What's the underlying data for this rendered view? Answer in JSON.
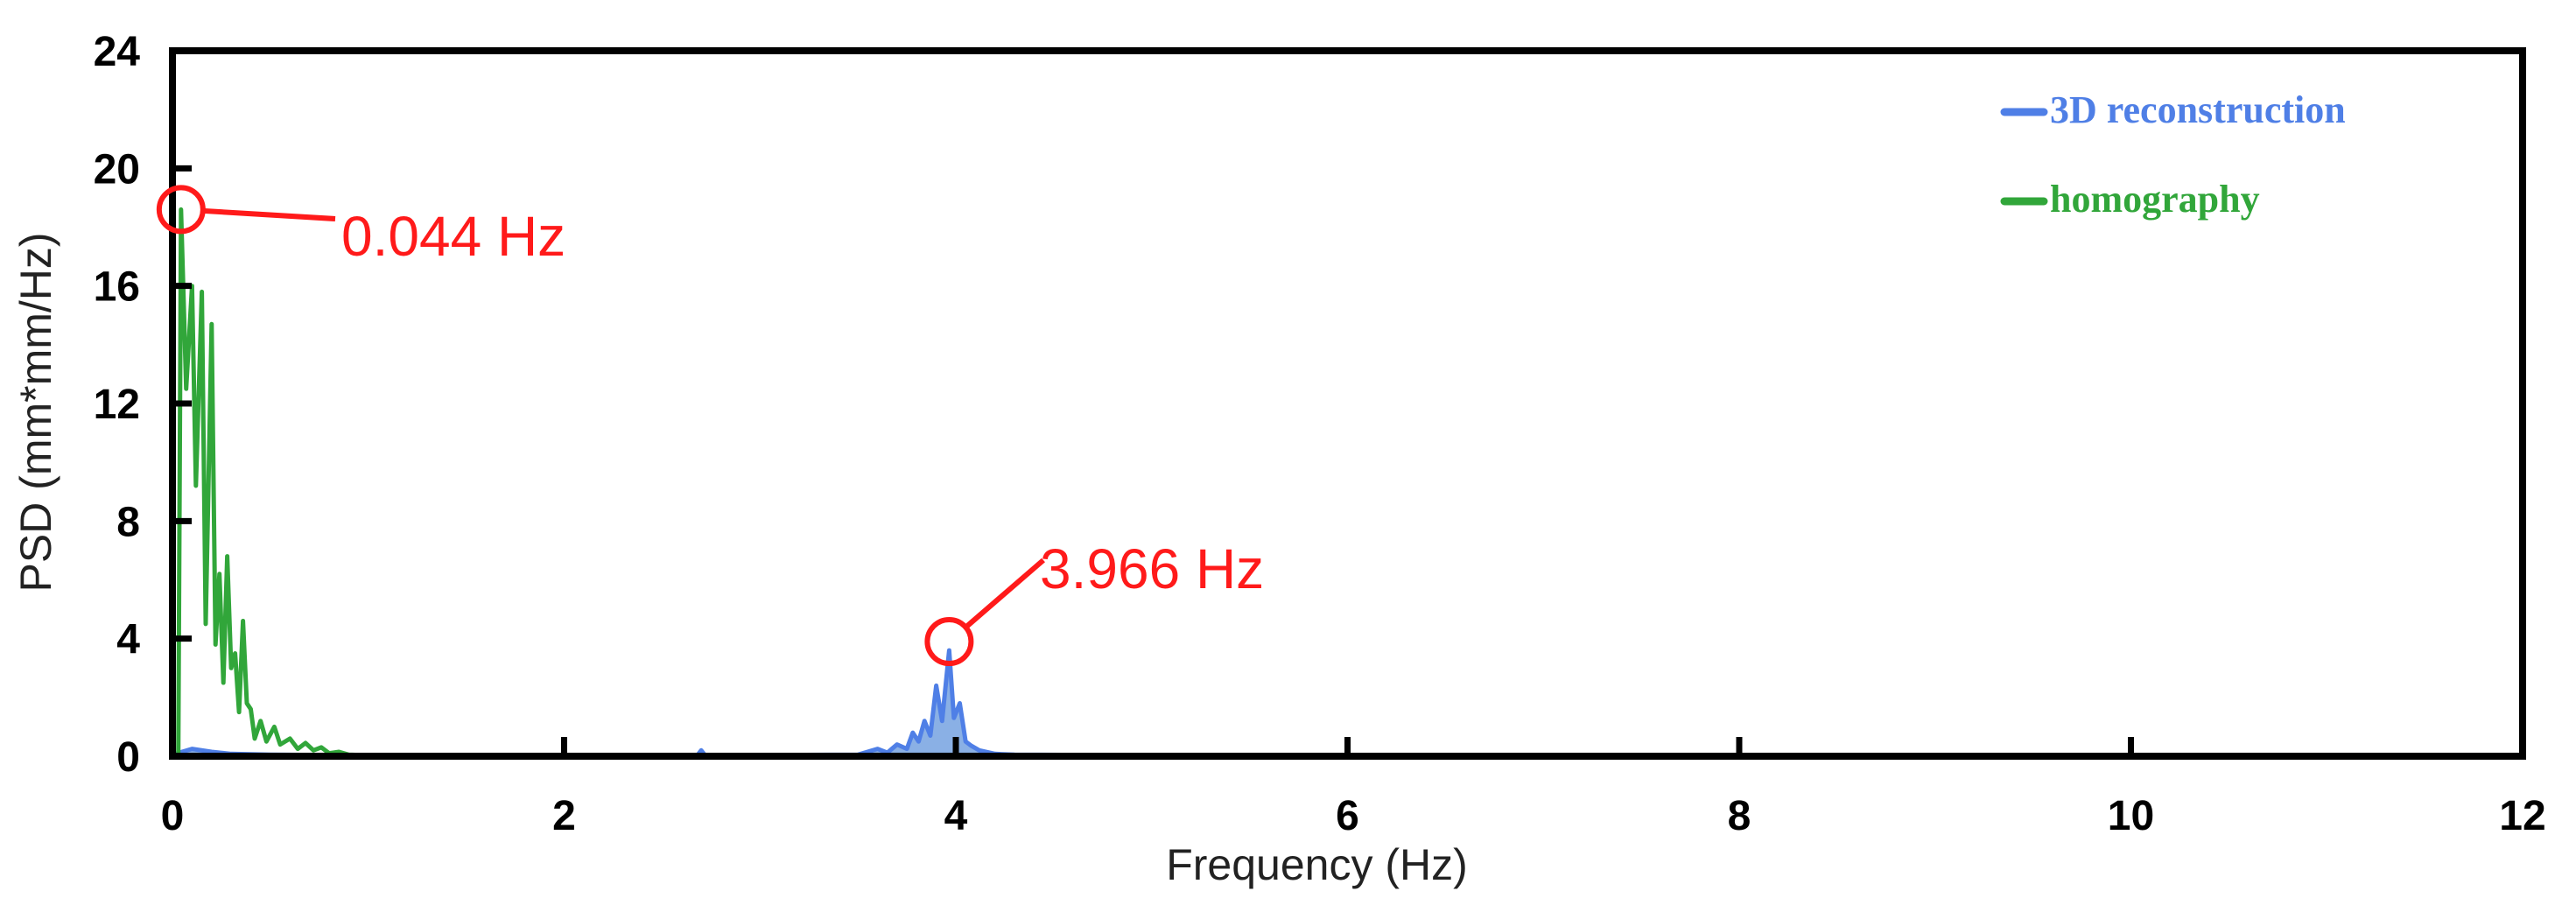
{
  "chart_data": {
    "type": "line",
    "title": "",
    "xlabel": "Frequency (Hz)",
    "ylabel": "PSD (mm*mm/Hz)",
    "xlim": [
      0,
      12
    ],
    "ylim": [
      0,
      24
    ],
    "xticks": [
      0,
      2,
      4,
      6,
      8,
      10,
      12
    ],
    "yticks": [
      0,
      4,
      8,
      12,
      16,
      20,
      24
    ],
    "grid": false,
    "legend_position": "top-right",
    "series": [
      {
        "name": "3D reconstruction",
        "color": "#4f7fe6",
        "fill": "#2a6fd0",
        "points": [
          [
            0,
            0.05
          ],
          [
            0.1,
            0.25
          ],
          [
            0.2,
            0.15
          ],
          [
            0.3,
            0.08
          ],
          [
            0.5,
            0.05
          ],
          [
            1,
            0.03
          ],
          [
            2,
            0.02
          ],
          [
            2.68,
            0.03
          ],
          [
            2.7,
            0.2
          ],
          [
            2.72,
            0.03
          ],
          [
            3.5,
            0.05
          ],
          [
            3.6,
            0.25
          ],
          [
            3.65,
            0.12
          ],
          [
            3.7,
            0.4
          ],
          [
            3.75,
            0.25
          ],
          [
            3.78,
            0.8
          ],
          [
            3.81,
            0.5
          ],
          [
            3.84,
            1.2
          ],
          [
            3.87,
            0.7
          ],
          [
            3.9,
            2.4
          ],
          [
            3.93,
            1.2
          ],
          [
            3.966,
            3.6
          ],
          [
            3.99,
            1.3
          ],
          [
            4.02,
            1.8
          ],
          [
            4.05,
            0.5
          ],
          [
            4.08,
            0.35
          ],
          [
            4.12,
            0.2
          ],
          [
            4.2,
            0.08
          ],
          [
            4.3,
            0.05
          ],
          [
            5,
            0.03
          ],
          [
            6,
            0.03
          ],
          [
            8,
            0.03
          ],
          [
            10,
            0.03
          ],
          [
            12,
            0.03
          ]
        ]
      },
      {
        "name": "homography",
        "color": "#31a63a",
        "points": [
          [
            0,
            0
          ],
          [
            0.03,
            0.05
          ],
          [
            0.044,
            18.6
          ],
          [
            0.07,
            12.5
          ],
          [
            0.1,
            16
          ],
          [
            0.12,
            9.2
          ],
          [
            0.15,
            15.8
          ],
          [
            0.17,
            4.5
          ],
          [
            0.2,
            14.7
          ],
          [
            0.22,
            3.8
          ],
          [
            0.24,
            6.2
          ],
          [
            0.26,
            2.5
          ],
          [
            0.28,
            6.8
          ],
          [
            0.3,
            3
          ],
          [
            0.32,
            3.5
          ],
          [
            0.34,
            1.5
          ],
          [
            0.36,
            4.6
          ],
          [
            0.38,
            1.8
          ],
          [
            0.4,
            1.6
          ],
          [
            0.42,
            0.6
          ],
          [
            0.45,
            1.2
          ],
          [
            0.48,
            0.5
          ],
          [
            0.52,
            1
          ],
          [
            0.55,
            0.4
          ],
          [
            0.6,
            0.6
          ],
          [
            0.64,
            0.25
          ],
          [
            0.68,
            0.45
          ],
          [
            0.72,
            0.2
          ],
          [
            0.76,
            0.3
          ],
          [
            0.8,
            0.1
          ],
          [
            0.85,
            0.15
          ],
          [
            0.9,
            0.05
          ],
          [
            1,
            0.03
          ],
          [
            1.5,
            0.02
          ],
          [
            2,
            0.02
          ],
          [
            3,
            0.02
          ],
          [
            4,
            0.02
          ],
          [
            6,
            0.02
          ],
          [
            8,
            0.02
          ],
          [
            10,
            0.02
          ],
          [
            12,
            0.02
          ]
        ]
      }
    ],
    "annotations": [
      {
        "label": "0.044 Hz",
        "x": 0.044,
        "y": 18.6,
        "color": "#ff1a1a"
      },
      {
        "label": "3.966 Hz",
        "x": 3.966,
        "y": 3.9,
        "color": "#ff1a1a"
      }
    ]
  }
}
